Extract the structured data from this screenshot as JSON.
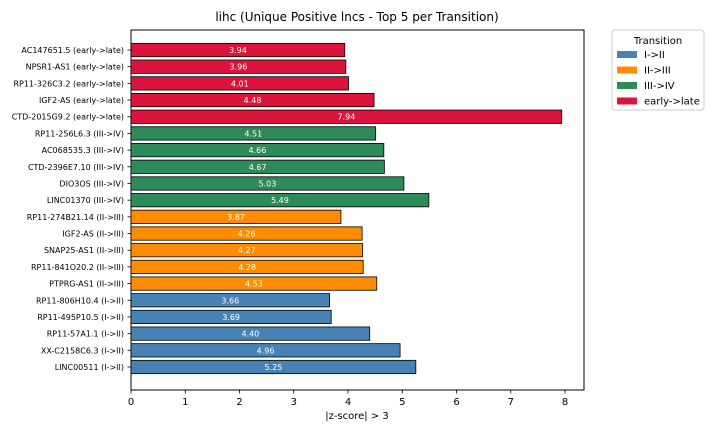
{
  "chart_data": {
    "type": "bar",
    "orientation": "horizontal",
    "title": "lihc (Unique Positive lncs - Top 5 per Transition)",
    "xlabel": "|z-score| > 3",
    "ylabel": "",
    "xlim": [
      0,
      8.35
    ],
    "xticks": [
      0,
      1,
      2,
      3,
      4,
      5,
      6,
      7,
      8
    ],
    "grid": false,
    "legend": {
      "title": "Transition",
      "placement": "outside-top-right",
      "entries": [
        {
          "label": "I->II",
          "color": "#4682b4"
        },
        {
          "label": "II->III",
          "color": "#ff8c00"
        },
        {
          "label": "III->IV",
          "color": "#2e8b57"
        },
        {
          "label": "early->late",
          "color": "#dc143c"
        }
      ]
    },
    "bars": [
      {
        "label": "AC147651.5 (early->late)",
        "value": 3.94,
        "value_label": "3.94",
        "group": "early->late"
      },
      {
        "label": "NPSR1-AS1 (early->late)",
        "value": 3.96,
        "value_label": "3.96",
        "group": "early->late"
      },
      {
        "label": "RP11-326C3.2 (early->late)",
        "value": 4.01,
        "value_label": "4.01",
        "group": "early->late"
      },
      {
        "label": "IGF2-AS (early->late)",
        "value": 4.48,
        "value_label": "4.48",
        "group": "early->late"
      },
      {
        "label": "CTD-2015G9.2 (early->late)",
        "value": 7.94,
        "value_label": "7.94",
        "group": "early->late"
      },
      {
        "label": "RP11-256L6.3 (III->IV)",
        "value": 4.51,
        "value_label": "4.51",
        "group": "III->IV"
      },
      {
        "label": "AC068535.3 (III->IV)",
        "value": 4.66,
        "value_label": "4.66",
        "group": "III->IV"
      },
      {
        "label": "CTD-2396E7.10 (III->IV)",
        "value": 4.67,
        "value_label": "4.67",
        "group": "III->IV"
      },
      {
        "label": "DIO3OS (III->IV)",
        "value": 5.03,
        "value_label": "5.03",
        "group": "III->IV"
      },
      {
        "label": "LINC01370 (III->IV)",
        "value": 5.49,
        "value_label": "5.49",
        "group": "III->IV"
      },
      {
        "label": "RP11-274B21.14 (II->III)",
        "value": 3.87,
        "value_label": "3.87",
        "group": "II->III"
      },
      {
        "label": "IGF2-AS (II->III)",
        "value": 4.26,
        "value_label": "4.26",
        "group": "II->III"
      },
      {
        "label": "SNAP25-AS1 (II->III)",
        "value": 4.27,
        "value_label": "4.27",
        "group": "II->III"
      },
      {
        "label": "RP11-841O20.2 (II->III)",
        "value": 4.28,
        "value_label": "4.28",
        "group": "II->III"
      },
      {
        "label": "PTPRG-AS1 (II->III)",
        "value": 4.53,
        "value_label": "4.53",
        "group": "II->III"
      },
      {
        "label": "RP11-806H10.4 (I->II)",
        "value": 3.66,
        "value_label": "3.66",
        "group": "I->II"
      },
      {
        "label": "RP11-495P10.5 (I->II)",
        "value": 3.69,
        "value_label": "3.69",
        "group": "I->II"
      },
      {
        "label": "RP11-57A1.1 (I->II)",
        "value": 4.4,
        "value_label": "4.40",
        "group": "I->II"
      },
      {
        "label": "XX-C2158C6.3 (I->II)",
        "value": 4.96,
        "value_label": "4.96",
        "group": "I->II"
      },
      {
        "label": "LINC00511 (I->II)",
        "value": 5.25,
        "value_label": "5.25",
        "group": "I->II"
      }
    ]
  }
}
